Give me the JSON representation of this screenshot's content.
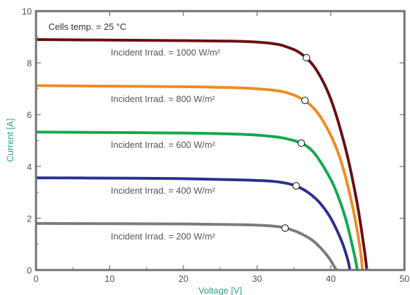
{
  "chart_data": {
    "type": "line",
    "title": "",
    "xlabel": "Voltage [V]",
    "ylabel": "Current [A]",
    "xlim": [
      0,
      50
    ],
    "ylim": [
      0,
      10
    ],
    "x_ticks": [
      "0",
      "10",
      "20",
      "30",
      "40",
      "50"
    ],
    "y_ticks": [
      "0",
      "2",
      "4",
      "6",
      "8",
      "10"
    ],
    "grid": false,
    "annotation": "Cells temp.  = 25 °C",
    "axis_title_color": "#2aa08a",
    "series": [
      {
        "label": "Incident Irrad. = 1000 W/m²",
        "color": "#6b0e0e",
        "isc": 8.9,
        "voc": 44.9,
        "mpp": {
          "v": 36.7,
          "i": 8.2
        },
        "points": [
          [
            0,
            8.9
          ],
          [
            10,
            8.88
          ],
          [
            20,
            8.86
          ],
          [
            28,
            8.83
          ],
          [
            32,
            8.75
          ],
          [
            34,
            8.62
          ],
          [
            36,
            8.35
          ],
          [
            38,
            7.75
          ],
          [
            40,
            6.6
          ],
          [
            42,
            4.7
          ],
          [
            43.5,
            2.7
          ],
          [
            44.5,
            0.9
          ],
          [
            44.9,
            0
          ]
        ]
      },
      {
        "label": "Incident Irrad. = 800 W/m²",
        "color": "#f08a24",
        "isc": 7.1,
        "voc": 44.3,
        "mpp": {
          "v": 36.5,
          "i": 6.55
        },
        "points": [
          [
            0,
            7.12
          ],
          [
            10,
            7.1
          ],
          [
            20,
            7.08
          ],
          [
            28,
            7.03
          ],
          [
            32,
            6.95
          ],
          [
            34,
            6.85
          ],
          [
            36,
            6.62
          ],
          [
            38,
            6.15
          ],
          [
            40,
            5.2
          ],
          [
            41.5,
            4.1
          ],
          [
            43,
            2.4
          ],
          [
            44,
            0.8
          ],
          [
            44.3,
            0
          ]
        ]
      },
      {
        "label": "Incident Irrad. = 600 W/m²",
        "color": "#12a84e",
        "isc": 5.33,
        "voc": 43.6,
        "mpp": {
          "v": 36.0,
          "i": 4.9
        },
        "points": [
          [
            0,
            5.33
          ],
          [
            10,
            5.31
          ],
          [
            20,
            5.29
          ],
          [
            28,
            5.24
          ],
          [
            32,
            5.16
          ],
          [
            34,
            5.07
          ],
          [
            36,
            4.9
          ],
          [
            37.5,
            4.6
          ],
          [
            39,
            4.0
          ],
          [
            40.5,
            3.2
          ],
          [
            42,
            2.0
          ],
          [
            43.2,
            0.6
          ],
          [
            43.6,
            0
          ]
        ]
      },
      {
        "label": "Incident Irrad. = 400 W/m²",
        "color": "#2b2f8e",
        "isc": 3.56,
        "voc": 42.6,
        "mpp": {
          "v": 35.3,
          "i": 3.25
        },
        "points": [
          [
            0,
            3.56
          ],
          [
            10,
            3.55
          ],
          [
            20,
            3.53
          ],
          [
            28,
            3.48
          ],
          [
            32,
            3.43
          ],
          [
            34,
            3.35
          ],
          [
            35.5,
            3.22
          ],
          [
            37,
            2.98
          ],
          [
            38.5,
            2.6
          ],
          [
            40,
            2.0
          ],
          [
            41.5,
            1.1
          ],
          [
            42.3,
            0.4
          ],
          [
            42.6,
            0
          ]
        ]
      },
      {
        "label": "Incident Irrad. = 200 W/m²",
        "color": "#7b7b7b",
        "isc": 1.8,
        "voc": 40.8,
        "mpp": {
          "v": 33.8,
          "i": 1.62
        },
        "points": [
          [
            0,
            1.8
          ],
          [
            10,
            1.79
          ],
          [
            20,
            1.78
          ],
          [
            28,
            1.75
          ],
          [
            31,
            1.72
          ],
          [
            33,
            1.67
          ],
          [
            34.5,
            1.57
          ],
          [
            36,
            1.4
          ],
          [
            37.5,
            1.15
          ],
          [
            38.8,
            0.8
          ],
          [
            39.8,
            0.45
          ],
          [
            40.5,
            0.12
          ],
          [
            40.8,
            0
          ]
        ]
      }
    ]
  }
}
